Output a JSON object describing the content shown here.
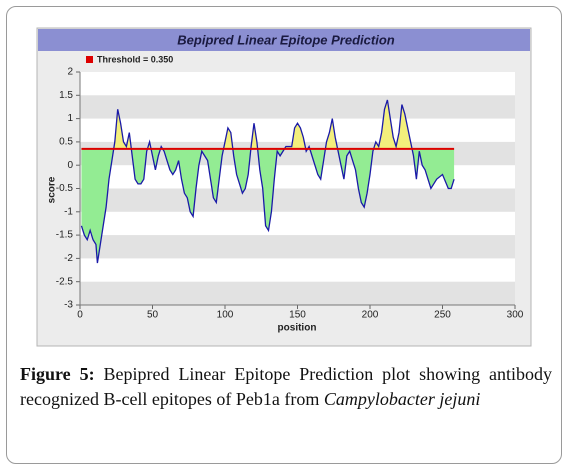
{
  "chart_data": {
    "type": "area",
    "title": "Bepipred Linear Epitope Prediction",
    "xlabel": "position",
    "ylabel": "score",
    "x": [
      1,
      3,
      5,
      7,
      9,
      11,
      12,
      14,
      16,
      18,
      20,
      22,
      24,
      26,
      28,
      30,
      32,
      34,
      36,
      38,
      40,
      42,
      44,
      46,
      48,
      50,
      52,
      54,
      56,
      58,
      60,
      62,
      64,
      66,
      68,
      70,
      72,
      74,
      76,
      78,
      80,
      82,
      84,
      86,
      88,
      90,
      92,
      94,
      96,
      98,
      100,
      102,
      104,
      106,
      108,
      110,
      112,
      114,
      116,
      118,
      120,
      122,
      124,
      126,
      128,
      130,
      132,
      134,
      136,
      138,
      140,
      142,
      144,
      146,
      148,
      150,
      152,
      154,
      156,
      158,
      160,
      162,
      164,
      166,
      168,
      170,
      172,
      174,
      176,
      178,
      180,
      182,
      184,
      186,
      188,
      190,
      192,
      194,
      196,
      198,
      200,
      202,
      204,
      206,
      208,
      210,
      212,
      214,
      216,
      218,
      220,
      222,
      224,
      226,
      228,
      230,
      232,
      234,
      236,
      238,
      240,
      242,
      244,
      246,
      250,
      254,
      256,
      258
    ],
    "series": [
      {
        "color": "#1a1aa8",
        "values": [
          -1.3,
          -1.5,
          -1.6,
          -1.4,
          -1.6,
          -1.7,
          -2.1,
          -1.7,
          -1.3,
          -0.9,
          -0.3,
          0.1,
          0.5,
          1.2,
          0.9,
          0.5,
          0.4,
          0.7,
          0.2,
          -0.3,
          -0.4,
          -0.4,
          -0.3,
          0.3,
          0.5,
          0.2,
          -0.1,
          0.2,
          0.4,
          0.3,
          0.1,
          -0.1,
          -0.2,
          -0.1,
          0.1,
          -0.3,
          -0.6,
          -0.7,
          -1.0,
          -1.1,
          -0.5,
          0.0,
          0.3,
          0.2,
          0.1,
          -0.3,
          -0.7,
          -0.8,
          -0.3,
          0.2,
          0.5,
          0.8,
          0.7,
          0.2,
          -0.2,
          -0.4,
          -0.6,
          -0.5,
          -0.2,
          0.4,
          0.9,
          0.5,
          -0.1,
          -0.5,
          -1.3,
          -1.4,
          -1.0,
          -0.3,
          0.3,
          0.2,
          0.3,
          0.4,
          0.4,
          0.4,
          0.8,
          0.9,
          0.8,
          0.6,
          0.3,
          0.4,
          0.2,
          0.0,
          -0.2,
          -0.3,
          0.1,
          0.5,
          0.7,
          1.0,
          0.6,
          0.3,
          0.0,
          -0.3,
          0.2,
          0.3,
          0.1,
          -0.1,
          -0.5,
          -0.8,
          -0.9,
          -0.6,
          -0.2,
          0.3,
          0.5,
          0.4,
          0.7,
          1.2,
          1.4,
          1.0,
          0.6,
          0.4,
          0.7,
          1.3,
          1.1,
          0.8,
          0.5,
          0.2,
          -0.3,
          0.3,
          0.0,
          -0.1,
          -0.3,
          -0.5,
          -0.4,
          -0.3,
          -0.2,
          -0.5,
          -0.5,
          -0.3
        ]
      }
    ],
    "threshold": {
      "name": "Threshold = 0.350",
      "value": 0.35,
      "color": "#dd0000"
    },
    "fill_above": "#f3ef7c",
    "fill_below": "#93ec93",
    "xlim": [
      0,
      300
    ],
    "xticks": [
      0,
      50,
      100,
      150,
      200,
      250,
      300
    ],
    "ylim": [
      -3,
      2
    ],
    "yticks": [
      -3,
      -2.5,
      -2,
      -1.5,
      -1,
      -0.5,
      0,
      0.5,
      1,
      1.5,
      2
    ],
    "grid": "bands"
  },
  "caption": {
    "label": "Figure 5:",
    "text": "Bepipred Linear Epitope Prediction plot showing antibody recognized B-cell epitopes of Peb1a from",
    "species": "Campylobacter jejuni"
  }
}
